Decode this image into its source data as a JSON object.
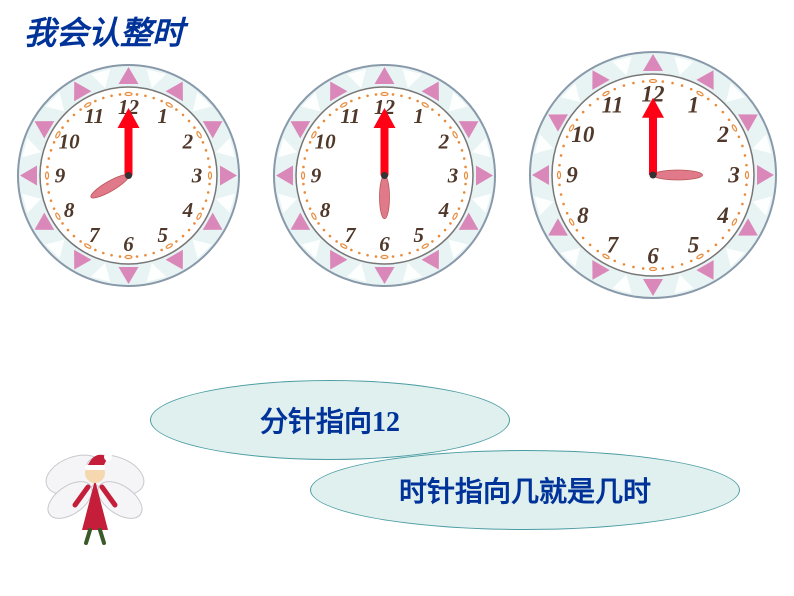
{
  "title": "我会认整时",
  "bubble1_text": "分针指向12",
  "bubble2_text": "时针指向几就是几时",
  "clocks": [
    {
      "size": 225,
      "hour_hand_angle": 240,
      "hour_hand_color": "#e07a8a",
      "minute_hand_angle": 0,
      "minute_hand_color": "#ff0015",
      "face_bg": "#ffffff",
      "bezel_bg": "#e8f3f4",
      "triangle_color": "#d774ae",
      "dash_color": "#e88b3a",
      "number_color": "#50382a",
      "number_fontsize": 21
    },
    {
      "size": 225,
      "hour_hand_angle": 180,
      "hour_hand_color": "#e07a8a",
      "minute_hand_angle": 0,
      "minute_hand_color": "#ff0015",
      "face_bg": "#ffffff",
      "bezel_bg": "#e8f3f4",
      "triangle_color": "#d774ae",
      "dash_color": "#e88b3a",
      "number_color": "#50382a",
      "number_fontsize": 21
    },
    {
      "size": 250,
      "hour_hand_angle": 90,
      "hour_hand_color": "#e07a8a",
      "minute_hand_angle": 0,
      "minute_hand_color": "#ff0015",
      "face_bg": "#ffffff",
      "bezel_bg": "#e8f3f4",
      "triangle_color": "#d774ae",
      "dash_color": "#e88b3a",
      "number_color": "#50382a",
      "number_fontsize": 23
    }
  ],
  "colors": {
    "title_color": "#003399",
    "bubble_bg": "#e0f0ef",
    "bubble_border": "#4c9da3",
    "bubble_text_color": "#003399"
  }
}
